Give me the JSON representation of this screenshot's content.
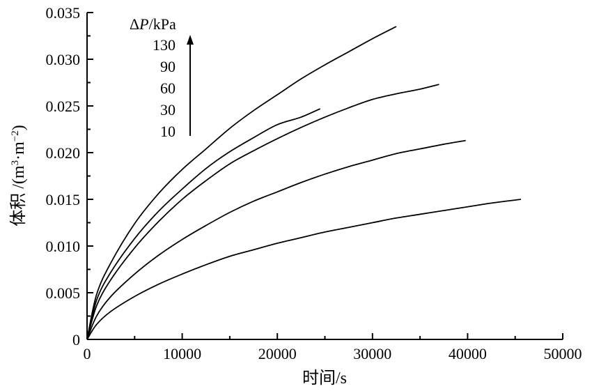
{
  "chart_data": {
    "type": "line",
    "xlabel": "时间/s",
    "ylabel_main": "体积 /(m",
    "ylabel_sup1": "3",
    "ylabel_mid": "·m",
    "ylabel_sup2": "−2",
    "ylabel_end": ")",
    "xlim": [
      0,
      50000
    ],
    "ylim": [
      0,
      0.035
    ],
    "x_ticks": [
      "0",
      "10000",
      "20000",
      "30000",
      "40000",
      "50000"
    ],
    "y_ticks": [
      "0",
      "0.005",
      "0.010",
      "0.015",
      "0.020",
      "0.025",
      "0.030",
      "0.035"
    ],
    "grid": false,
    "legend": {
      "title_symbol": "Δ",
      "title_var": "P",
      "title_unit": "/kPa",
      "entries": [
        "130",
        "90",
        "60",
        "30",
        "10"
      ],
      "arrow": "increasing upward"
    },
    "series": [
      {
        "values": [
          [
            0,
            0
          ],
          [
            1000,
            0.0048
          ],
          [
            2500,
            0.0082
          ],
          [
            5000,
            0.0124
          ],
          [
            7500,
            0.0156
          ],
          [
            10000,
            0.0182
          ],
          [
            12500,
            0.0204
          ],
          [
            15000,
            0.0226
          ],
          [
            17500,
            0.0245
          ],
          [
            20000,
            0.0262
          ],
          [
            22500,
            0.0279
          ],
          [
            25000,
            0.0294
          ],
          [
            27500,
            0.0308
          ],
          [
            30000,
            0.0322
          ],
          [
            32500,
            0.0335
          ]
        ]
      },
      {
        "values": [
          [
            0,
            0
          ],
          [
            1000,
            0.0042
          ],
          [
            2500,
            0.0072
          ],
          [
            5000,
            0.0108
          ],
          [
            7500,
            0.0137
          ],
          [
            10000,
            0.0161
          ],
          [
            12500,
            0.0183
          ],
          [
            15000,
            0.0201
          ],
          [
            17500,
            0.0216
          ],
          [
            20000,
            0.023
          ],
          [
            22500,
            0.0238
          ],
          [
            24500,
            0.0247
          ]
        ]
      },
      {
        "values": [
          [
            0,
            0
          ],
          [
            1000,
            0.0036
          ],
          [
            2500,
            0.0064
          ],
          [
            5000,
            0.0098
          ],
          [
            7500,
            0.0126
          ],
          [
            10000,
            0.015
          ],
          [
            12500,
            0.017
          ],
          [
            15000,
            0.0188
          ],
          [
            17500,
            0.0202
          ],
          [
            20000,
            0.0215
          ],
          [
            22500,
            0.0227
          ],
          [
            25000,
            0.0238
          ],
          [
            27500,
            0.0248
          ],
          [
            30000,
            0.0257
          ],
          [
            32500,
            0.0263
          ],
          [
            35000,
            0.0268
          ],
          [
            37000,
            0.0273
          ]
        ]
      },
      {
        "values": [
          [
            0,
            0
          ],
          [
            1000,
            0.0025
          ],
          [
            2500,
            0.0046
          ],
          [
            5000,
            0.007
          ],
          [
            7500,
            0.009
          ],
          [
            10000,
            0.0107
          ],
          [
            12500,
            0.0122
          ],
          [
            15000,
            0.0136
          ],
          [
            17500,
            0.0148
          ],
          [
            20000,
            0.0158
          ],
          [
            22500,
            0.0168
          ],
          [
            25000,
            0.0177
          ],
          [
            27500,
            0.0185
          ],
          [
            30000,
            0.0192
          ],
          [
            32500,
            0.0199
          ],
          [
            35000,
            0.0204
          ],
          [
            37500,
            0.0209
          ],
          [
            39800,
            0.0213
          ]
        ]
      },
      {
        "values": [
          [
            0,
            0
          ],
          [
            1000,
            0.0016
          ],
          [
            2500,
            0.003
          ],
          [
            5000,
            0.0046
          ],
          [
            7500,
            0.0059
          ],
          [
            10000,
            0.007
          ],
          [
            12500,
            0.008
          ],
          [
            15000,
            0.0089
          ],
          [
            17500,
            0.0096
          ],
          [
            20000,
            0.0103
          ],
          [
            22500,
            0.0109
          ],
          [
            25000,
            0.0115
          ],
          [
            27500,
            0.012
          ],
          [
            30000,
            0.0125
          ],
          [
            32500,
            0.013
          ],
          [
            35000,
            0.0134
          ],
          [
            37500,
            0.0138
          ],
          [
            40000,
            0.0142
          ],
          [
            42500,
            0.0146
          ],
          [
            45600,
            0.015
          ]
        ]
      }
    ]
  }
}
